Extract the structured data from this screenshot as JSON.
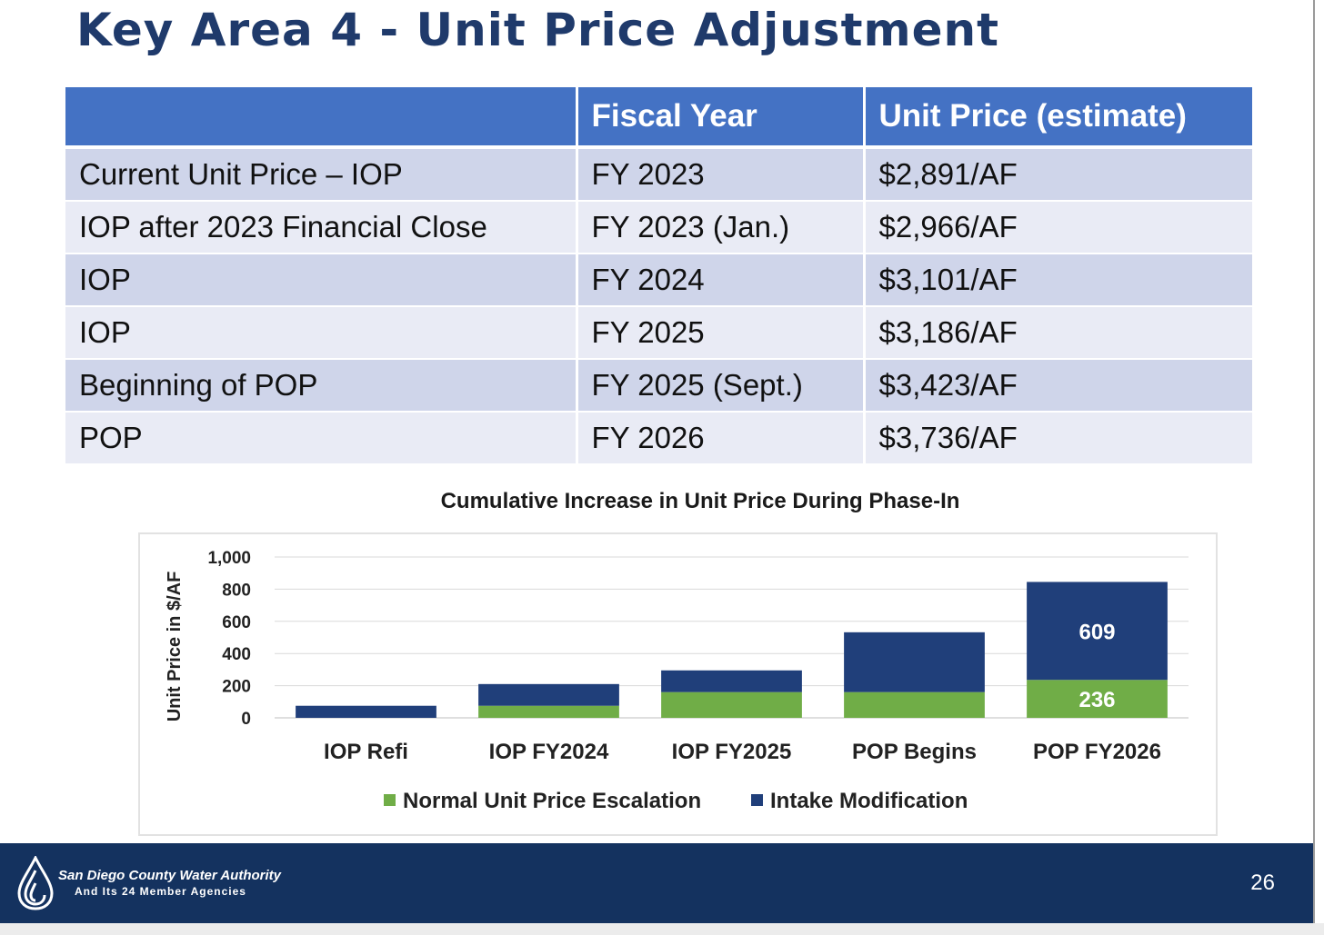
{
  "title": "Key Area 4 - Unit Price Adjustment",
  "table": {
    "headers": [
      "",
      "Fiscal Year",
      "Unit Price (estimate)"
    ],
    "rows": [
      [
        "Current Unit Price – IOP",
        "FY 2023",
        "$2,891/AF"
      ],
      [
        "IOP after 2023 Financial Close",
        "FY 2023 (Jan.)",
        "$2,966/AF"
      ],
      [
        "IOP",
        "FY 2024",
        "$3,101/AF"
      ],
      [
        "IOP",
        "FY 2025",
        "$3,186/AF"
      ],
      [
        "Beginning of POP",
        "FY 2025 (Sept.)",
        "$3,423/AF"
      ],
      [
        "POP",
        "FY 2026",
        "$3,736/AF"
      ]
    ]
  },
  "chart_data": {
    "type": "bar",
    "stacked": true,
    "title": "Cumulative Increase in Unit Price During Phase-In",
    "ylabel": "Unit Price in $/AF",
    "xlabel": "",
    "ylim": [
      0,
      1000
    ],
    "yticks": [
      "0",
      "200",
      "400",
      "600",
      "800",
      "1,000"
    ],
    "categories": [
      "IOP Refi",
      "IOP FY2024",
      "IOP FY2025",
      "POP Begins",
      "POP FY2026"
    ],
    "series": [
      {
        "name": "Normal Unit Price Escalation",
        "color": "#70ad47",
        "values": [
          0,
          75,
          160,
          160,
          236
        ]
      },
      {
        "name": "Intake Modification",
        "color": "#203f7a",
        "values": [
          75,
          135,
          135,
          372,
          609
        ]
      }
    ],
    "data_labels": [
      {
        "category": "POP FY2026",
        "series": "Normal Unit Price Escalation",
        "text": "236"
      },
      {
        "category": "POP FY2026",
        "series": "Intake Modification",
        "text": "609"
      }
    ],
    "grid": true,
    "legend": "bottom"
  },
  "footer": {
    "org": "San Diego County Water Authority",
    "sub": "And Its 24 Member Agencies",
    "page": "26"
  },
  "colors": {
    "title": "#1f3a6b",
    "header_bg": "#4472c4",
    "row_odd": "#cfd5ea",
    "row_even": "#e9ebf5",
    "footer_bg": "#14325f"
  }
}
